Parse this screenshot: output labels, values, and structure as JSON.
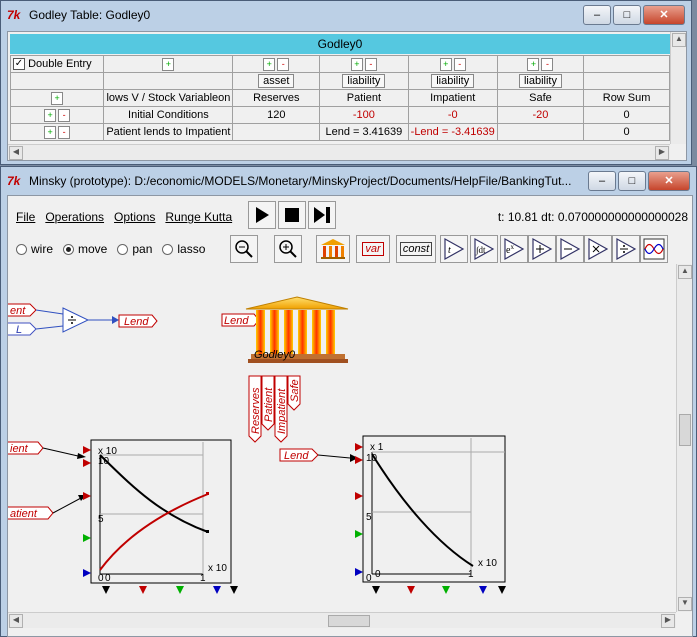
{
  "godley_window": {
    "title": "Godley Table: Godley0",
    "table_name": "Godley0",
    "double_entry_label": "Double Entry",
    "double_entry_checked": true,
    "asset_class_buttons": [
      "asset",
      "liability",
      "liability",
      "liability"
    ],
    "header_cell": "lows V / Stock Variableon",
    "stocks": [
      "Reserves",
      "Patient",
      "Impatient",
      "Safe"
    ],
    "row_sum_label": "Row Sum",
    "rows": [
      {
        "label": "Initial Conditions",
        "cells": [
          "120",
          "-100",
          "-0",
          "-20"
        ],
        "row_sum": "0"
      },
      {
        "label": "Patient lends to Impatient",
        "cells": [
          "",
          "Lend = 3.41639",
          "-Lend = -3.41639",
          ""
        ],
        "row_sum": "0"
      }
    ]
  },
  "minsky_window": {
    "title": "Minsky (prototype): D:/economic/MODELS/Monetary/MinskyProject/Documents/HelpFile/BankingTut...",
    "menu": [
      "File",
      "Operations",
      "Options",
      "Runge Kutta"
    ],
    "time_readout": "t: 10.81  dt: 0.070000000000000028",
    "modes": [
      "wire",
      "move",
      "pan",
      "lasso"
    ],
    "selected_mode": "move",
    "tool_labels": {
      "var": "var",
      "const": "const",
      "t": "t",
      "integrate": "∫dt",
      "exp": "e",
      "exp_sup": "x"
    },
    "canvas": {
      "var_patient_top": "ent",
      "var_l": "L",
      "var_lend_arrow": "Lend",
      "var_lend_bank": "Lend",
      "godley_icon_label": "Godley0",
      "stock_tags": [
        "Reserves",
        "Patient",
        "Impatient",
        "Safe"
      ],
      "var_patient_plot": "ient",
      "var_impatient_plot": "atient",
      "var_lend_plot2": "Lend",
      "plot1": {
        "x_mult": "x 10",
        "x_mult_bottom": "x 10",
        "y_top": "10",
        "y_mid": "5",
        "y_zero": "0",
        "x_zero": "0",
        "x_one": "1"
      },
      "plot2": {
        "x_mult": "x 1",
        "x_mult_bottom": "x 10",
        "y_top": "10",
        "y_mid": "5",
        "y_zero": "0",
        "x_zero": "0",
        "x_one": "1"
      }
    }
  },
  "colors": {
    "accent_red": "#c00000",
    "godley_header": "#55c8e0"
  }
}
